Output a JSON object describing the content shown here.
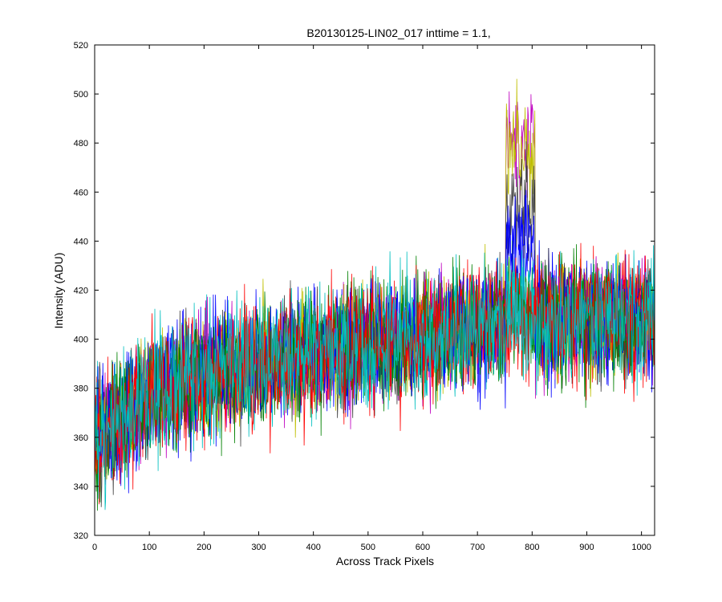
{
  "chart_data": {
    "type": "line",
    "title": "B20130125-LIN02_017 inttime = 1.1,",
    "xlabel": "Across Track Pixels",
    "ylabel": "Intensity (ADU)",
    "xlim": [
      0,
      1024
    ],
    "ylim": [
      320,
      520
    ],
    "xticks": [
      0,
      100,
      200,
      300,
      400,
      500,
      600,
      700,
      800,
      900,
      1000
    ],
    "yticks": [
      320,
      340,
      360,
      380,
      400,
      420,
      440,
      460,
      480,
      500,
      520
    ],
    "grid": false,
    "legend": "none",
    "baseline_trend": [
      {
        "x": 0,
        "y": 360
      },
      {
        "x": 100,
        "y": 377
      },
      {
        "x": 200,
        "y": 385
      },
      {
        "x": 300,
        "y": 390
      },
      {
        "x": 400,
        "y": 394
      },
      {
        "x": 500,
        "y": 397
      },
      {
        "x": 600,
        "y": 401
      },
      {
        "x": 700,
        "y": 405
      },
      {
        "x": 800,
        "y": 407
      },
      {
        "x": 900,
        "y": 408
      },
      {
        "x": 1024,
        "y": 409
      }
    ],
    "noise_amplitude": 12,
    "peak_region": {
      "x_start": 752,
      "x_end": 805
    },
    "series": [
      {
        "color": "#0000ff",
        "peak_value": 435
      },
      {
        "color": "#008000",
        "peak_value": 415
      },
      {
        "color": "#ff0000",
        "peak_value": 412
      },
      {
        "color": "#00bfbf",
        "peak_value": 418
      },
      {
        "color": "#bf00bf",
        "peak_value": 483
      },
      {
        "color": "#bfbf00",
        "peak_value": 478
      },
      {
        "color": "#404040",
        "peak_value": 455
      },
      {
        "color": "#0000ff",
        "peak_value": 440
      },
      {
        "color": "#008000",
        "peak_value": 410
      },
      {
        "color": "#ff0000",
        "peak_value": 405
      },
      {
        "color": "#00bfbf",
        "peak_value": 408
      }
    ]
  }
}
